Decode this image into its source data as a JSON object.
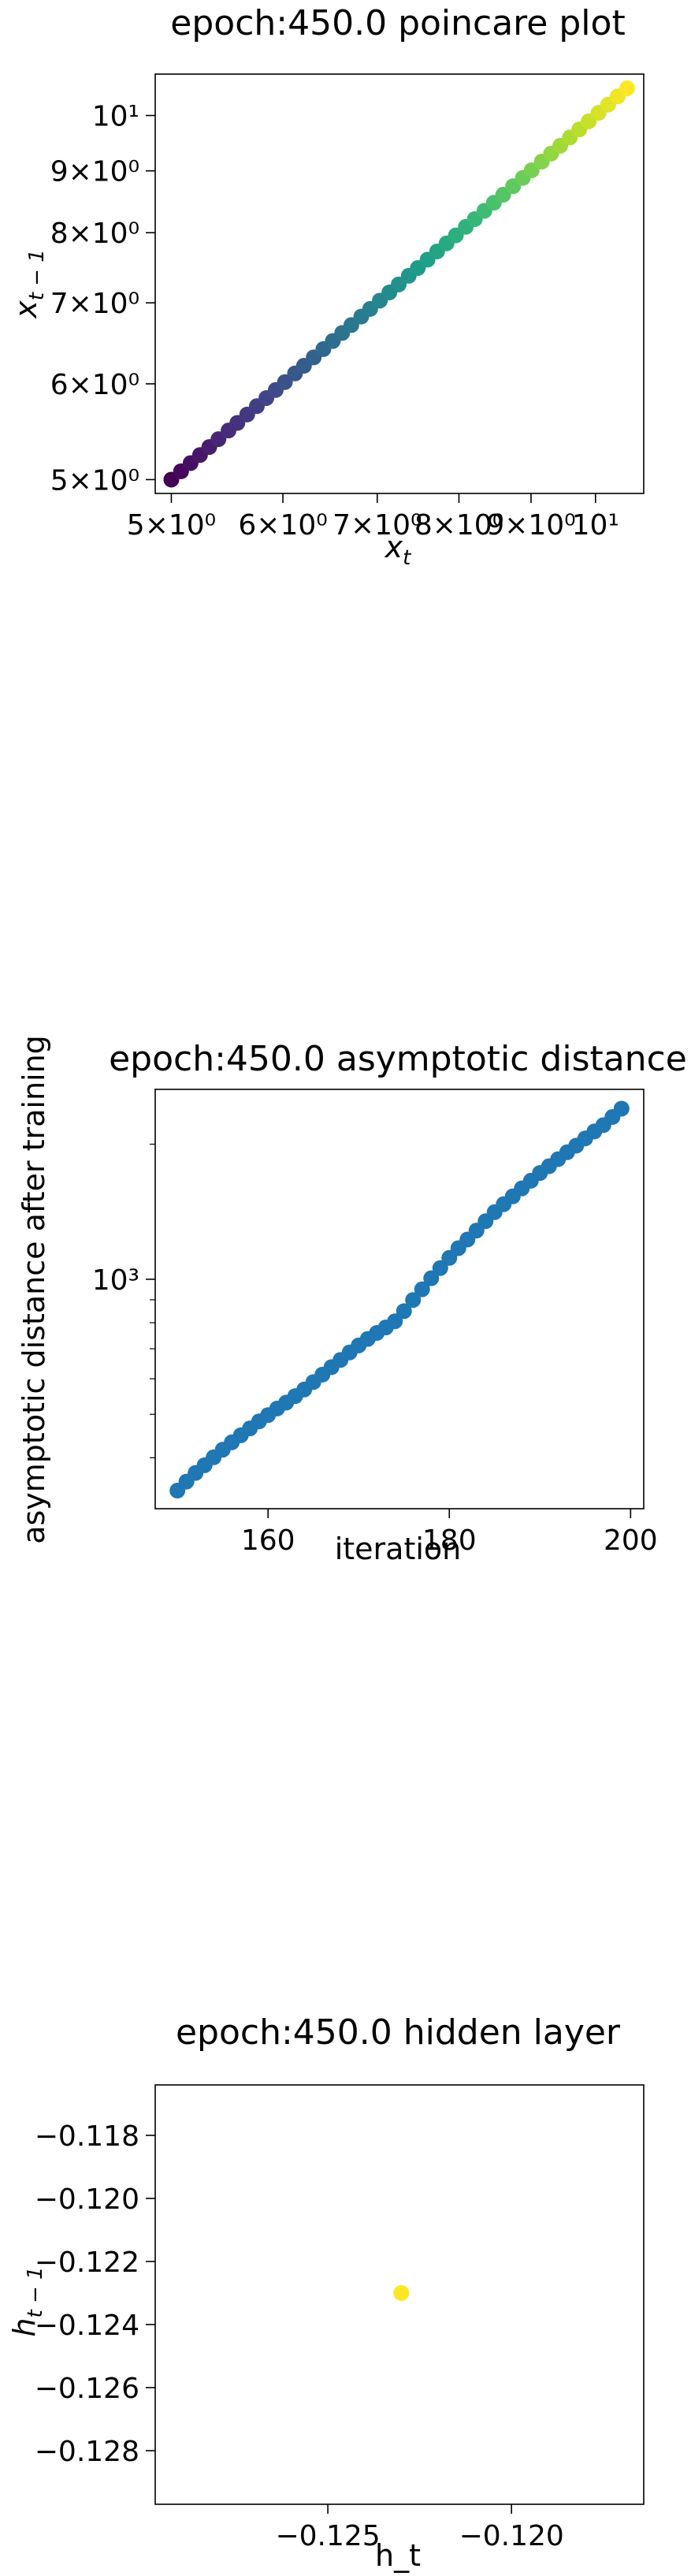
{
  "colors": {
    "frame": "#000000",
    "scatter_default": "#1f77b4",
    "hidden_point": "#fde725",
    "viridis": [
      "#440154",
      "#482878",
      "#3e4989",
      "#31688e",
      "#26828e",
      "#1f9e89",
      "#35b779",
      "#6ece58",
      "#b5de2b",
      "#fde725"
    ]
  },
  "chart_data": [
    {
      "type": "scatter",
      "title": "epoch:450.0 poincare plot",
      "xlabel": "x_t",
      "ylabel": "x_{t-1}",
      "xscale": "log",
      "yscale": "log",
      "xlim": [
        4.87,
        10.82
      ],
      "ylim": [
        4.87,
        10.82
      ],
      "grid": false,
      "color_map": "viridis",
      "x_ticks": [
        {
          "value": 5,
          "label": "5×10⁰"
        },
        {
          "value": 6,
          "label": "6×10⁰"
        },
        {
          "value": 7,
          "label": "7×10⁰"
        },
        {
          "value": 8,
          "label": "8×10⁰"
        },
        {
          "value": 9,
          "label": "9×10⁰"
        },
        {
          "value": 10,
          "label": "10¹"
        }
      ],
      "y_ticks": [
        {
          "value": 5,
          "label": "5×10⁰"
        },
        {
          "value": 6,
          "label": "6×10⁰"
        },
        {
          "value": 7,
          "label": "7×10⁰"
        },
        {
          "value": 8,
          "label": "8×10⁰"
        },
        {
          "value": 9,
          "label": "9×10⁰"
        },
        {
          "value": 10,
          "label": "10¹"
        }
      ],
      "x": [
        5.0,
        5.08,
        5.16,
        5.24,
        5.32,
        5.4,
        5.49,
        5.57,
        5.66,
        5.75,
        5.84,
        5.93,
        6.02,
        6.12,
        6.21,
        6.31,
        6.41,
        6.51,
        6.61,
        6.71,
        6.82,
        6.92,
        7.03,
        7.14,
        7.25,
        7.37,
        7.48,
        7.6,
        7.72,
        7.84,
        7.96,
        8.09,
        8.21,
        8.34,
        8.47,
        8.6,
        8.74,
        8.88,
        9.01,
        9.16,
        9.3,
        9.44,
        9.59,
        9.74,
        9.89,
        10.05,
        10.21,
        10.37,
        10.53
      ],
      "y": [
        5.0,
        5.08,
        5.16,
        5.24,
        5.32,
        5.4,
        5.49,
        5.57,
        5.66,
        5.75,
        5.84,
        5.93,
        6.02,
        6.12,
        6.21,
        6.31,
        6.41,
        6.51,
        6.61,
        6.71,
        6.82,
        6.92,
        7.03,
        7.14,
        7.25,
        7.37,
        7.48,
        7.6,
        7.72,
        7.84,
        7.96,
        8.09,
        8.21,
        8.34,
        8.47,
        8.6,
        8.74,
        8.88,
        9.01,
        9.16,
        9.3,
        9.44,
        9.59,
        9.74,
        9.89,
        10.05,
        10.21,
        10.37,
        10.53
      ]
    },
    {
      "type": "scatter",
      "title": "epoch:450.0 asymptotic distance",
      "xlabel": "iteration",
      "ylabel": "asymptotic distance after training",
      "xscale": "linear",
      "yscale": "log",
      "xlim": [
        147.55,
        201.45
      ],
      "ylim": [
        308,
        2650
      ],
      "grid": false,
      "x_ticks": [
        {
          "value": 160,
          "label": "160"
        },
        {
          "value": 180,
          "label": "180"
        },
        {
          "value": 200,
          "label": "200"
        }
      ],
      "y_ticks": [
        {
          "value": 1000,
          "label": "10³"
        }
      ],
      "x": [
        150,
        151,
        152,
        153,
        154,
        155,
        156,
        157,
        158,
        159,
        160,
        161,
        162,
        163,
        164,
        165,
        166,
        167,
        168,
        169,
        170,
        171,
        172,
        173,
        174,
        175,
        176,
        177,
        178,
        179,
        180,
        181,
        182,
        183,
        184,
        185,
        186,
        187,
        188,
        189,
        190,
        191,
        192,
        193,
        194,
        195,
        196,
        197,
        198,
        199
      ],
      "y": [
        338,
        354,
        370,
        385,
        401,
        417,
        433,
        449,
        465,
        482,
        498,
        515,
        531,
        549,
        568,
        590,
        613,
        637,
        661,
        687,
        712,
        736,
        759,
        781,
        806,
        849,
        899,
        950,
        1005,
        1059,
        1116,
        1173,
        1226,
        1284,
        1347,
        1411,
        1470,
        1530,
        1594,
        1658,
        1725,
        1786,
        1852,
        1919,
        1985,
        2060,
        2135,
        2206,
        2300,
        2400
      ]
    },
    {
      "type": "scatter",
      "title": "epoch:450.0 hidden layer",
      "xlabel": "h_t",
      "ylabel": "h_{t-1}",
      "xlim": [
        -0.1297,
        -0.1164
      ],
      "ylim": [
        -0.1297,
        -0.1164
      ],
      "grid": false,
      "x_ticks": [
        {
          "value": -0.125,
          "label": "−0.125"
        },
        {
          "value": -0.12,
          "label": "−0.120"
        }
      ],
      "y_ticks": [
        {
          "value": -0.118,
          "label": "−0.118"
        },
        {
          "value": -0.12,
          "label": "−0.120"
        },
        {
          "value": -0.122,
          "label": "−0.122"
        },
        {
          "value": -0.124,
          "label": "−0.124"
        },
        {
          "value": -0.126,
          "label": "−0.126"
        },
        {
          "value": -0.128,
          "label": "−0.128"
        }
      ],
      "x": [
        -0.123
      ],
      "y": [
        -0.123
      ]
    }
  ]
}
